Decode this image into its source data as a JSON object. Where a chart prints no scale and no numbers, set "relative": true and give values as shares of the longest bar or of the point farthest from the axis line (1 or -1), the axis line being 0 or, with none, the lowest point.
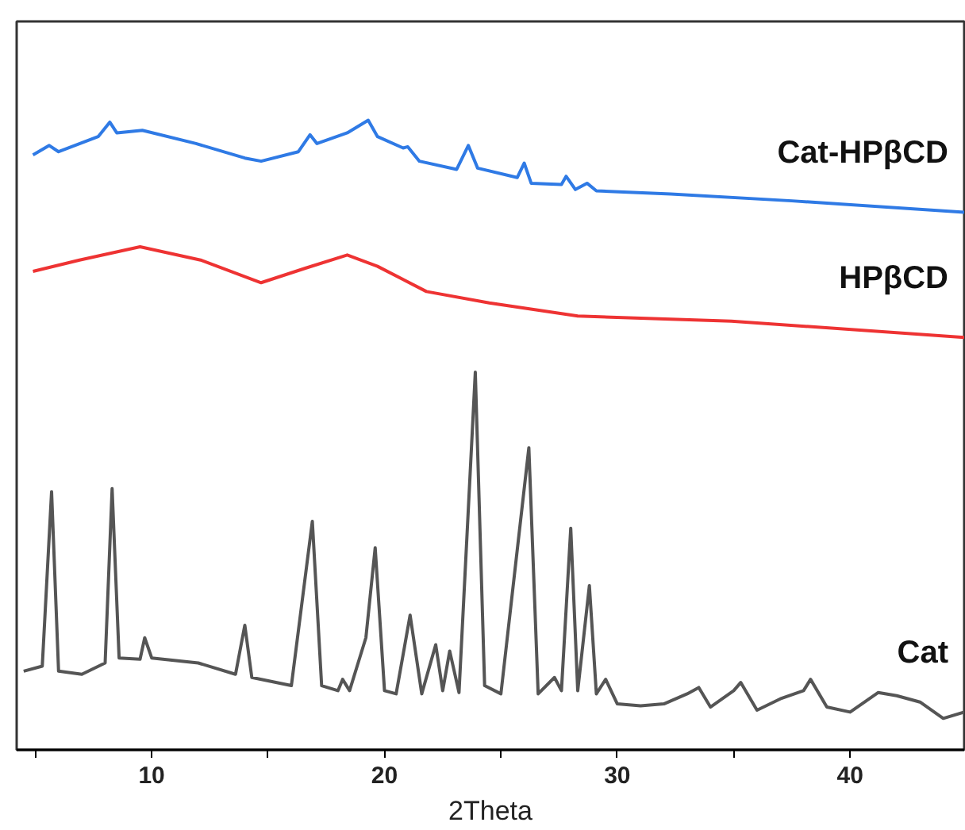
{
  "chart_data": {
    "type": "line",
    "relative": true,
    "xlabel": "2Theta",
    "xlim": [
      4.2,
      44.9
    ],
    "xticks": [
      {
        "value": 5,
        "label": null
      },
      10,
      {
        "value": 15,
        "label": null
      },
      20,
      {
        "value": 25,
        "label": null
      },
      30,
      {
        "value": 35,
        "label": null
      },
      40
    ],
    "grid": false,
    "marker": "none",
    "line_style": "solid",
    "series": [
      {
        "name": "Cat-HPβCD",
        "color": "#2f7ae5",
        "x": [
          4.9,
          5.6,
          6.0,
          7.7,
          8.2,
          8.5,
          9.6,
          11.9,
          14.0,
          14.7,
          16.3,
          16.8,
          17.1,
          18.4,
          19.3,
          19.7,
          20.8,
          21.0,
          21.5,
          23.1,
          23.6,
          24.0,
          25.7,
          26.0,
          26.3,
          27.6,
          27.8,
          28.2,
          28.7,
          29.1,
          32.3,
          37.5,
          44.9
        ],
        "values": [
          0.945,
          0.96,
          0.95,
          0.974,
          0.997,
          0.98,
          0.984,
          0.963,
          0.94,
          0.935,
          0.95,
          0.977,
          0.963,
          0.98,
          1.0,
          0.974,
          0.956,
          0.958,
          0.935,
          0.922,
          0.96,
          0.924,
          0.909,
          0.932,
          0.9,
          0.898,
          0.911,
          0.89,
          0.9,
          0.888,
          0.883,
          0.872,
          0.854
        ]
      },
      {
        "name": "HPβCD",
        "color": "#ee3333",
        "x": [
          4.9,
          6.9,
          9.5,
          12.1,
          14.7,
          16.6,
          18.4,
          19.7,
          21.8,
          24.5,
          28.3,
          34.9,
          44.9
        ],
        "values": [
          0.76,
          0.778,
          0.799,
          0.778,
          0.742,
          0.765,
          0.786,
          0.768,
          0.728,
          0.71,
          0.689,
          0.681,
          0.655
        ]
      },
      {
        "name": "Cat",
        "color": "#555555",
        "x": [
          4.5,
          5.3,
          5.7,
          6.0,
          7.0,
          8.0,
          8.3,
          8.6,
          9.5,
          9.7,
          10.0,
          12.0,
          13.6,
          14.0,
          14.3,
          16.0,
          16.9,
          17.3,
          18.0,
          18.2,
          18.5,
          19.2,
          19.6,
          20.0,
          20.5,
          21.1,
          21.6,
          22.2,
          22.5,
          22.8,
          23.2,
          23.9,
          24.3,
          25.0,
          26.2,
          26.6,
          27.3,
          27.6,
          28.0,
          28.3,
          28.8,
          29.1,
          29.5,
          30.0,
          31.0,
          32.0,
          33.0,
          33.5,
          34.0,
          35.0,
          35.3,
          36.0,
          37.0,
          38.0,
          38.3,
          39.0,
          40.0,
          41.2,
          42.0,
          43.0,
          44.0,
          44.9
        ],
        "values": [
          0.125,
          0.133,
          0.41,
          0.125,
          0.12,
          0.138,
          0.415,
          0.146,
          0.144,
          0.178,
          0.146,
          0.138,
          0.12,
          0.198,
          0.115,
          0.102,
          0.363,
          0.102,
          0.094,
          0.112,
          0.094,
          0.178,
          0.321,
          0.094,
          0.089,
          0.214,
          0.089,
          0.167,
          0.094,
          0.157,
          0.091,
          0.6,
          0.102,
          0.089,
          0.48,
          0.089,
          0.115,
          0.094,
          0.352,
          0.094,
          0.261,
          0.089,
          0.112,
          0.073,
          0.07,
          0.073,
          0.089,
          0.099,
          0.068,
          0.094,
          0.107,
          0.063,
          0.081,
          0.094,
          0.112,
          0.068,
          0.06,
          0.091,
          0.086,
          0.076,
          0.05,
          0.06
        ]
      }
    ]
  }
}
